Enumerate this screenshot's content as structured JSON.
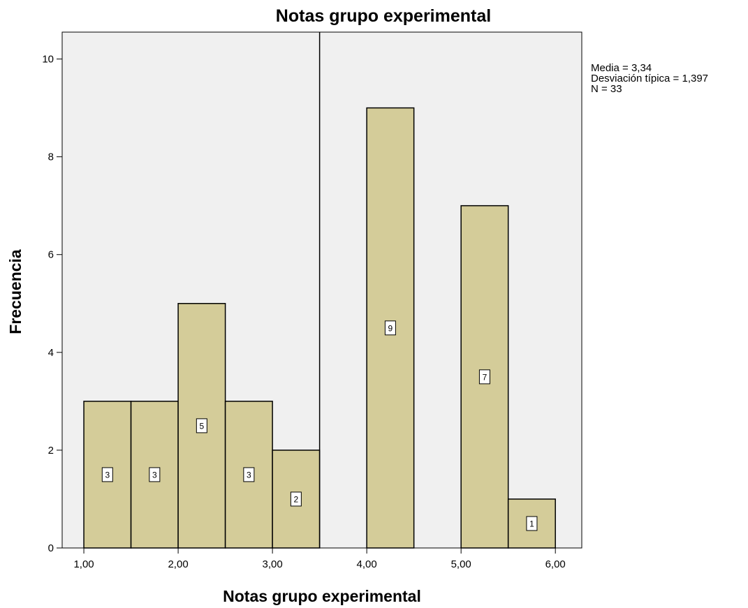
{
  "chart_data": {
    "type": "bar",
    "title": "Notas grupo experimental",
    "xlabel": "Notas grupo experimental",
    "ylabel": "Frecuencia",
    "bins": [
      {
        "start": 1.0,
        "end": 1.5,
        "value": 3
      },
      {
        "start": 1.5,
        "end": 2.0,
        "value": 3
      },
      {
        "start": 2.0,
        "end": 2.5,
        "value": 5
      },
      {
        "start": 2.5,
        "end": 3.0,
        "value": 3
      },
      {
        "start": 3.0,
        "end": 3.5,
        "value": 2
      },
      {
        "start": 3.5,
        "end": 4.0,
        "value": 0
      },
      {
        "start": 4.0,
        "end": 4.5,
        "value": 9
      },
      {
        "start": 4.5,
        "end": 5.0,
        "value": 0
      },
      {
        "start": 5.0,
        "end": 5.5,
        "value": 7
      },
      {
        "start": 5.5,
        "end": 6.0,
        "value": 1
      }
    ],
    "xlim": [
      0.77,
      6.28
    ],
    "ylim": [
      0,
      10.55
    ],
    "xticks": [
      1,
      2,
      3,
      4,
      5,
      6
    ],
    "xtick_labels": [
      "1,00",
      "2,00",
      "3,00",
      "4,00",
      "5,00",
      "6,00"
    ],
    "yticks": [
      0,
      2,
      4,
      6,
      8,
      10
    ],
    "ytick_labels": [
      "0",
      "2",
      "4",
      "6",
      "8",
      "10"
    ],
    "reference_line_x": 3.5,
    "stats": [
      "Media = 3,34",
      "Desviación típica = 1,397",
      "N = 33"
    ],
    "grid": false,
    "legend": "none",
    "colors": {
      "bar_fill": "#d4cc99",
      "plot_background": "#f0f0f0",
      "outline": "#000000",
      "label_box": "#ffffff"
    }
  }
}
